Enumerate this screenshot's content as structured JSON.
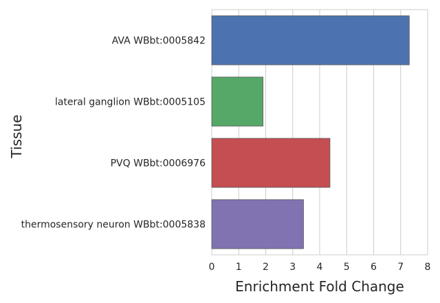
{
  "chart_data": {
    "type": "bar",
    "orientation": "horizontal",
    "categories": [
      "AVA WBbt:0005842",
      "lateral ganglion WBbt:0005105",
      "PVQ WBbt:0006976",
      "thermosensory neuron WBbt:0005838"
    ],
    "values": [
      7.32,
      1.9,
      4.38,
      3.4
    ],
    "colors": [
      "#4c72b0",
      "#55a868",
      "#c44e52",
      "#8172b2"
    ],
    "xlabel": "Enrichment Fold Change",
    "ylabel": "Tissue",
    "xlim": [
      0,
      8
    ],
    "xticks": [
      0,
      1,
      2,
      3,
      4,
      5,
      6,
      7,
      8
    ],
    "grid": "vertical",
    "background": "#ffffff",
    "grid_color": "#cccccc",
    "spine_color": "#cccccc",
    "style": "seaborn-whitegrid"
  }
}
